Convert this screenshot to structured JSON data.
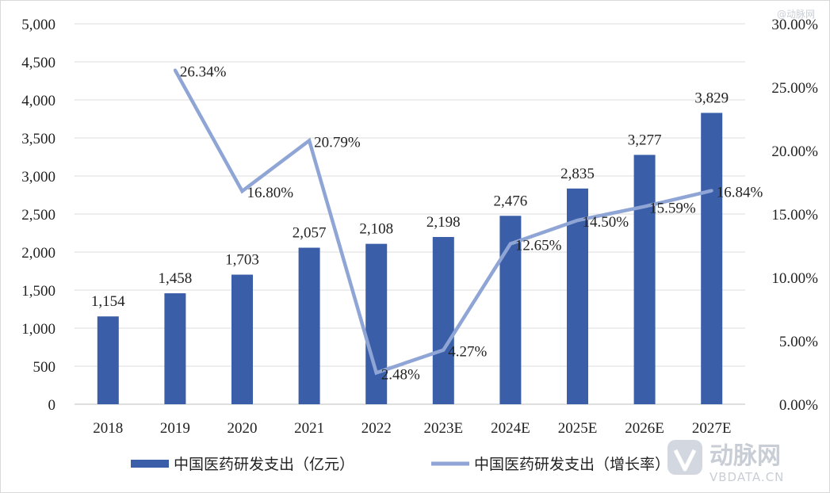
{
  "chart_data": {
    "type": "bar",
    "categories": [
      "2018",
      "2019",
      "2020",
      "2021",
      "2022",
      "2023E",
      "2024E",
      "2025E",
      "2026E",
      "2027E"
    ],
    "series": [
      {
        "name": "中国医药研发支出（亿元）",
        "type": "bar",
        "axis": "left",
        "color": "#3a5ea8",
        "values": [
          1154,
          1458,
          1703,
          2057,
          2108,
          2198,
          2476,
          2835,
          3277,
          3829
        ],
        "labels": [
          "1,154",
          "1,458",
          "1,703",
          "2,057",
          "2,108",
          "2,198",
          "2,476",
          "2,835",
          "3,277",
          "3,829"
        ]
      },
      {
        "name": "中国医药研发支出（增长率）",
        "type": "line",
        "axis": "right",
        "color": "#8fa5d5",
        "values": [
          null,
          26.34,
          16.8,
          20.79,
          2.48,
          4.27,
          12.65,
          14.5,
          15.59,
          16.84
        ],
        "labels": [
          "",
          "26.34%",
          "16.80%",
          "20.79%",
          "2.48%",
          "4.27%",
          "12.65%",
          "14.50%",
          "15.59%",
          "16.84%"
        ]
      }
    ],
    "y_left": {
      "range": [
        0,
        5000
      ],
      "ticks": [
        0,
        500,
        1000,
        1500,
        2000,
        2500,
        3000,
        3500,
        4000,
        4500,
        5000
      ],
      "tick_labels": [
        "0",
        "500",
        "1,000",
        "1,500",
        "2,000",
        "2,500",
        "3,000",
        "3,500",
        "4,000",
        "4,500",
        "5,000"
      ]
    },
    "y_right": {
      "range": [
        0,
        30
      ],
      "ticks": [
        0,
        5,
        10,
        15,
        20,
        25,
        30
      ],
      "tick_labels": [
        "0.00%",
        "5.00%",
        "10.00%",
        "15.00%",
        "20.00%",
        "25.00%",
        "30.00%"
      ]
    },
    "grid": true,
    "legend": "bottom",
    "title": "",
    "xlabel": "",
    "ylabel": ""
  },
  "watermark": {
    "top_right": "@动脉网",
    "logo_cn": "动脉网",
    "logo_en": "VBDATA.CN"
  }
}
